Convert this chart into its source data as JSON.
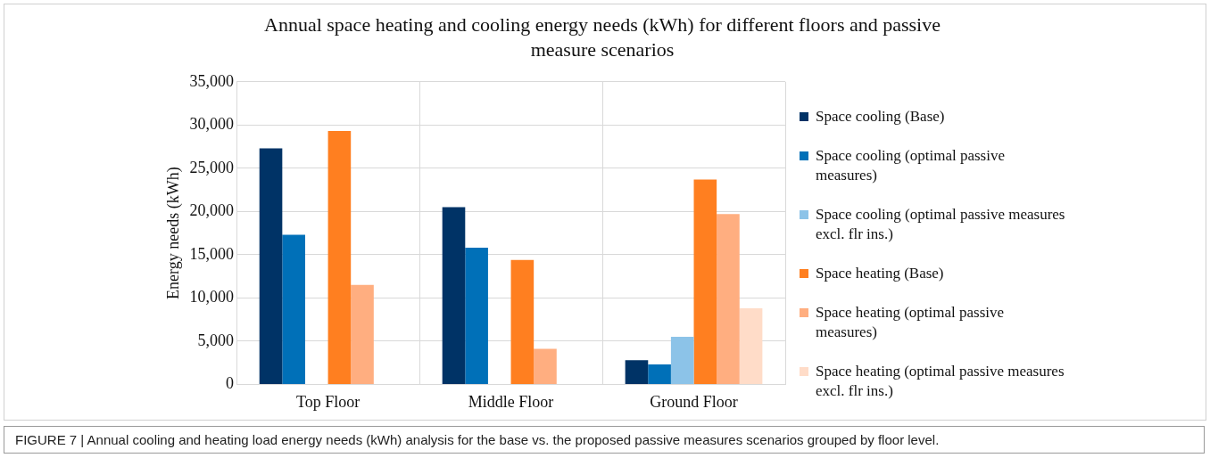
{
  "chart_data": {
    "type": "bar",
    "title": "Annual space heating and cooling energy needs (kWh) for different floors and passive measure scenarios",
    "ylabel": "Energy needs (kWh)",
    "categories": [
      "Top Floor",
      "Middle Floor",
      "Ground Floor"
    ],
    "series": [
      {
        "name": "Space cooling  (Base)",
        "color": "#003366",
        "values": [
          27300,
          20500,
          2800
        ]
      },
      {
        "name": "Space cooling  (optimal passive measures)",
        "color": "#0070b8",
        "values": [
          17300,
          15800,
          2300
        ]
      },
      {
        "name": "Space cooling (optimal passive measures excl. flr ins.)",
        "color": "#8cc3e8",
        "values": [
          null,
          null,
          5500
        ]
      },
      {
        "name": "Space heating (Base)",
        "color": "#ff7f20",
        "values": [
          29300,
          14400,
          23700
        ]
      },
      {
        "name": "Space heating (optimal passive measures)",
        "color": "#ffae80",
        "values": [
          11500,
          4100,
          19700
        ]
      },
      {
        "name": "Space heating (optimal passive measures excl. flr ins.)",
        "color": "#ffdcc8",
        "values": [
          null,
          null,
          8800
        ]
      }
    ],
    "ylim": [
      0,
      35000
    ],
    "yticks": [
      {
        "value": 0,
        "label": "0"
      },
      {
        "value": 5000,
        "label": "5,000"
      },
      {
        "value": 10000,
        "label": "10,000"
      },
      {
        "value": 15000,
        "label": "15,000"
      },
      {
        "value": 20000,
        "label": "20,000"
      },
      {
        "value": 25000,
        "label": "25,000"
      },
      {
        "value": 30000,
        "label": "30,000"
      },
      {
        "value": 35000,
        "label": "35,000"
      }
    ],
    "grid": true,
    "legend": "right",
    "annotations": [
      "FIGURE 7 | Annual cooling and heating load energy needs (kWh) analysis for the base vs. the proposed passive measures scenarios grouped by floor level."
    ]
  }
}
